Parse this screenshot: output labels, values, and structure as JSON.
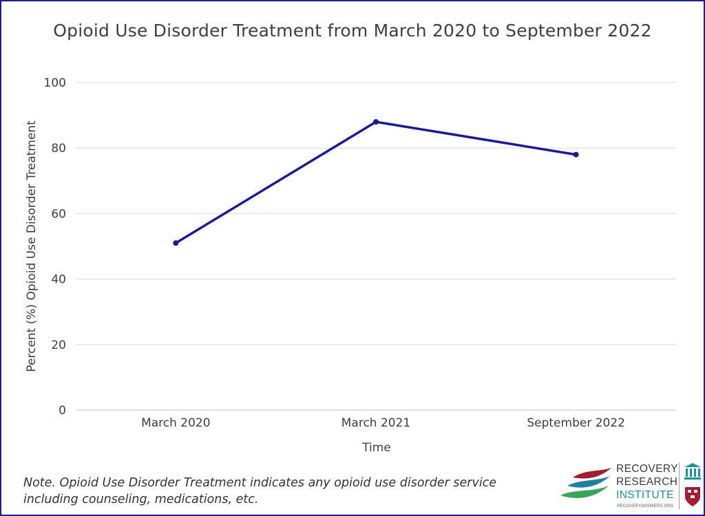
{
  "chart_data": {
    "type": "line",
    "title": "Opioid Use Disorder Treatment from March 2020 to September 2022",
    "xlabel": "Time",
    "ylabel": "Percent (%) Opioid Use Disorder Treatment",
    "categories": [
      "March 2020",
      "March 2021",
      "September 2022"
    ],
    "series": [
      {
        "values": [
          51,
          88,
          78
        ],
        "color": "#1a1a99"
      }
    ],
    "ylim": [
      0,
      100
    ],
    "yticks": [
      "0",
      "20",
      "40",
      "60",
      "80",
      "100"
    ],
    "grid": true,
    "legend": "none"
  },
  "note": "Note. Opioid Use Disorder Treatment indicates any opioid use disorder service including counseling, medications, etc.",
  "logo": {
    "line1": "RECOVERY",
    "line2": "RESEARCH",
    "line3": "INSTITUTE",
    "url": "RECOVERYANSWERS.ORG",
    "icons": [
      "swoosh-icon",
      "columns-icon",
      "shield-icon"
    ]
  },
  "colors": {
    "border": "#1f1f8a",
    "line": "#1a1a99",
    "grid": "#d9d9d9",
    "text": "#3e3e3e",
    "accent_teal": "#1f8f8f",
    "accent_red": "#a51c30"
  }
}
